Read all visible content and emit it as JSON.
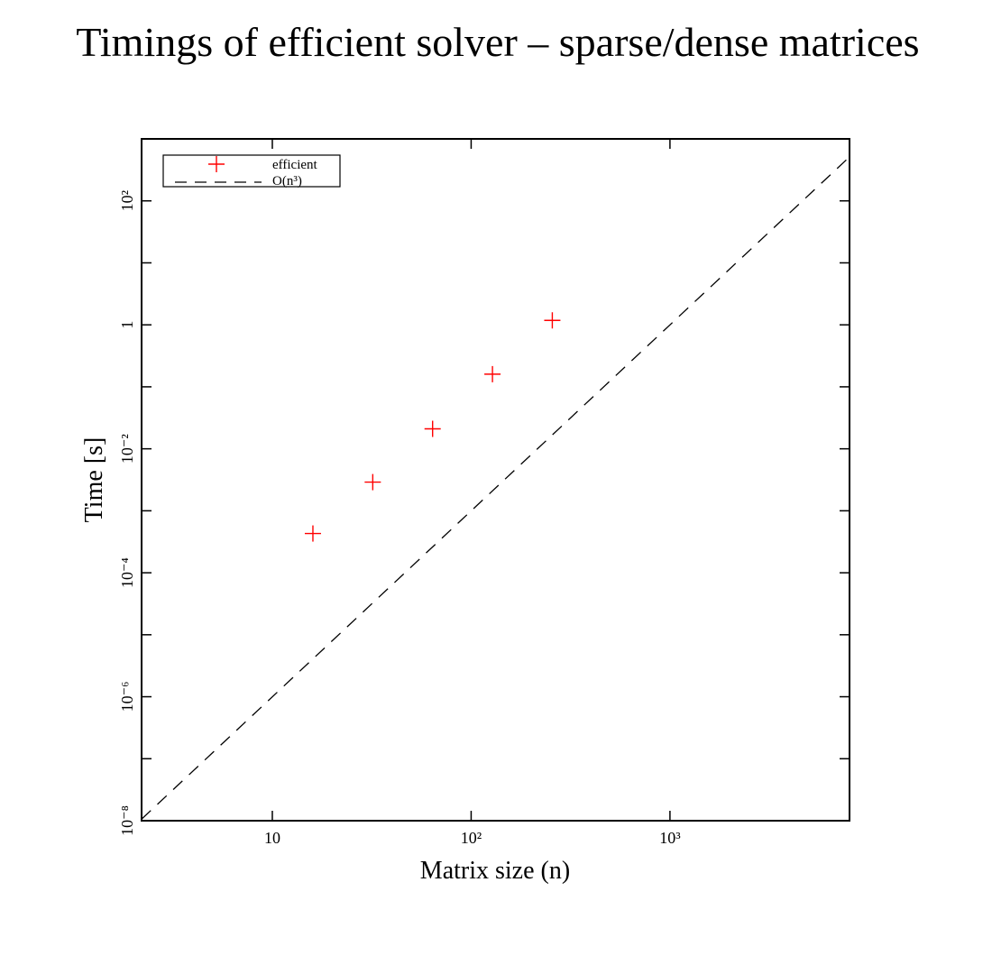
{
  "chart_data": {
    "type": "scatter",
    "title": "Timings of efficient solver – sparse/dense matrices",
    "xlabel": "Matrix size (n)",
    "ylabel": "Time [s]",
    "xscale": "log",
    "yscale": "log",
    "xlim": [
      2.2,
      8000
    ],
    "ylim": [
      1e-08,
      1000
    ],
    "x_ticks": [
      {
        "value": 10,
        "label": "10"
      },
      {
        "value": 100,
        "label": "10²"
      },
      {
        "value": 1000,
        "label": "10³"
      }
    ],
    "y_ticks": [
      {
        "value": 1e-08,
        "label": "10⁻⁸"
      },
      {
        "value": 1e-06,
        "label": "10⁻⁶"
      },
      {
        "value": 0.0001,
        "label": "10⁻⁴"
      },
      {
        "value": 0.01,
        "label": "10⁻²"
      },
      {
        "value": 1,
        "label": "1"
      },
      {
        "value": 100,
        "label": "10²"
      }
    ],
    "legend_position": "top-left",
    "grid": false,
    "series": [
      {
        "name": "efficient",
        "marker": "plus",
        "color": "#ff0000",
        "x": [
          16,
          32,
          64,
          128,
          256
        ],
        "y": [
          0.00043,
          0.0029,
          0.021,
          0.16,
          1.18
        ]
      },
      {
        "name": "O(n³)",
        "style": "dashed-line",
        "color": "#000000",
        "x": [
          2.2,
          8000
        ],
        "y": [
          1.06e-08,
          512
        ]
      }
    ]
  }
}
